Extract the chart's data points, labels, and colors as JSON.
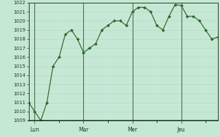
{
  "y_values": [
    1011,
    1010,
    1009,
    1011,
    1015,
    1016,
    1018.5,
    1019,
    1018,
    1016.5,
    1017,
    1017.5,
    1019,
    1019.5,
    1020,
    1020,
    1019.5,
    1021,
    1021.5,
    1021.5,
    1021,
    1019.5,
    1019,
    1020.5,
    1021.8,
    1021.7,
    1020.5,
    1020.5,
    1020,
    1019,
    1018,
    1018.2
  ],
  "x_tick_positions": [
    1,
    9,
    17,
    25
  ],
  "x_tick_labels": [
    "Lun",
    "Mar",
    "Mer",
    "Jeu"
  ],
  "y_min": 1009,
  "y_max": 1022,
  "y_step": 1,
  "line_color": "#2d6a2d",
  "marker_color": "#2d6a2d",
  "bg_color": "#c5e8d5",
  "grid_major_color": "#b8d8c8",
  "grid_minor_color": "#cce8da",
  "axis_color": "#1a3a1a",
  "tick_label_color": "#1a3a1a",
  "vline_color": "#4a6a4a"
}
